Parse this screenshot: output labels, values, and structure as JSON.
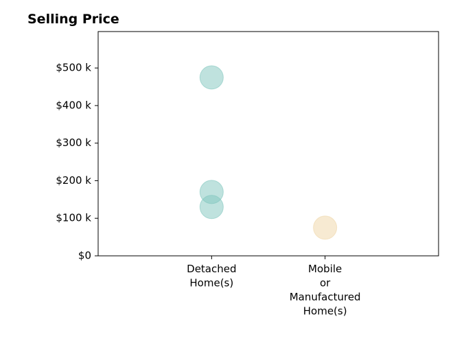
{
  "chart_data": {
    "type": "strip",
    "title": "Selling Price",
    "categories": [
      "Detached Home(s)",
      "Mobile or Manufactured Home(s)"
    ],
    "colors": [
      "#80c6be",
      "#efd6a6"
    ],
    "x": [
      "Detached Home(s)",
      "Detached Home(s)",
      "Detached Home(s)",
      "Mobile or Manufactured Home(s)"
    ],
    "values": [
      475000,
      170000,
      130000,
      75000
    ],
    "ylim": [
      0,
      597000
    ],
    "yticks": [
      {
        "value": 0,
        "label": "$0"
      },
      {
        "value": 100000,
        "label": "$100 k"
      },
      {
        "value": 200000,
        "label": "$200 k"
      },
      {
        "value": 300000,
        "label": "$300 k"
      },
      {
        "value": 400000,
        "label": "$400 k"
      },
      {
        "value": 500000,
        "label": "$500 k"
      }
    ],
    "grid": false
  }
}
